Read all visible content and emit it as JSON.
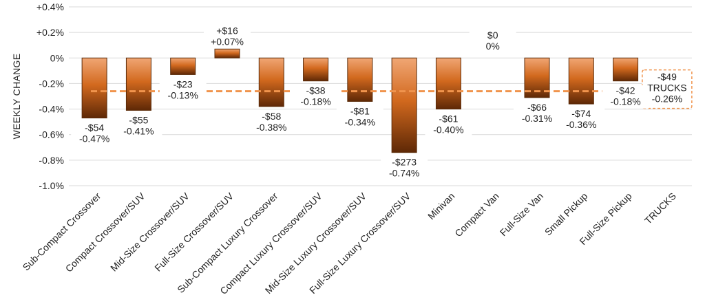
{
  "chart_data": {
    "type": "bar",
    "ylabel": "WEEKLY CHANGE",
    "ylim": [
      -1.0,
      0.4
    ],
    "yticks": [
      0.4,
      0.2,
      0,
      -0.2,
      -0.4,
      -0.6,
      -0.8,
      -1.0
    ],
    "ytick_labels": [
      "+0.4%",
      "+0.2%",
      "0%",
      "-0.2%",
      "-0.4%",
      "-0.6%",
      "-0.8%",
      "-1.0%"
    ],
    "categories": [
      "Sub-Compact Crossover",
      "Compact Crossover/SUV",
      "Mid-Size Crossover/SUV",
      "Full-Size Crossover/SUV",
      "Sub-Compact Luxury Crossover",
      "Compact Luxury Crossover/SUV",
      "Mid-Size Luxury Crossover/SUV",
      "Full-Size Luxury Crossover/SUV",
      "Minivan",
      "Compact Van",
      "Full-Size Van",
      "Small Pickup",
      "Full-Size Pickup",
      "TRUCKS"
    ],
    "values": [
      -0.47,
      -0.41,
      -0.13,
      0.07,
      -0.38,
      -0.18,
      -0.34,
      -0.74,
      -0.4,
      0,
      -0.31,
      -0.36,
      -0.18,
      null
    ],
    "dollar_labels": [
      "-$54",
      "-$55",
      "-$23",
      "+$16",
      "-$58",
      "-$38",
      "-$81",
      "-$273",
      "-$61",
      "$0",
      "-$66",
      "-$74",
      "-$42",
      "-$49"
    ],
    "percent_labels": [
      "-0.47%",
      "-0.41%",
      "-0.13%",
      "+0.07%",
      "-0.38%",
      "-0.18%",
      "-0.34%",
      "-0.74%",
      "-0.40%",
      "0%",
      "-0.31%",
      "-0.36%",
      "-0.18%",
      "-0.26%"
    ],
    "average": {
      "value": -0.26,
      "dollar_label": "-$49",
      "name_label": "TRUCKS",
      "percent_label": "-0.26%"
    },
    "colors": {
      "bar_top": "#f0a674",
      "bar_mid": "#d2691e",
      "bar_bottom": "#5e2806",
      "avg_line": "#f0944d",
      "grid": "#d9d9d9"
    }
  }
}
